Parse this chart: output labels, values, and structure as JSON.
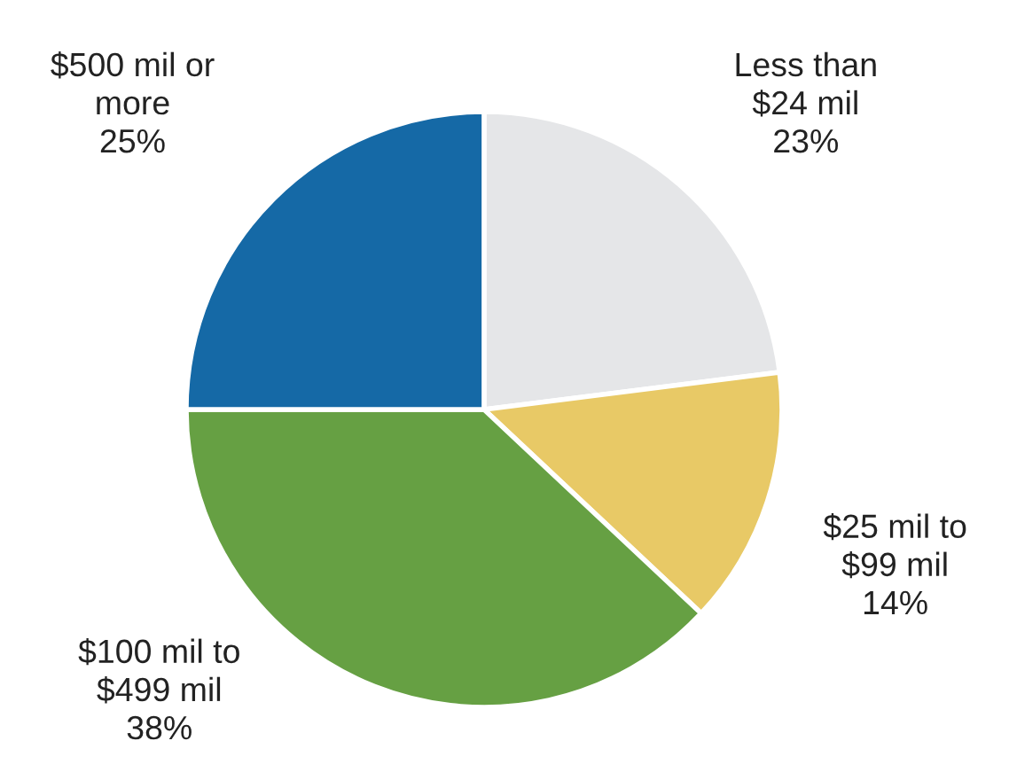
{
  "chart_data": {
    "type": "pie",
    "categories": [
      "Less than\n$24 mil",
      "$25 mil to\n$99 mil",
      "$100 mil to\n$499 mil",
      "$500 mil or\nmore"
    ],
    "values": [
      23,
      14,
      38,
      25
    ],
    "value_labels": [
      "23%",
      "14%",
      "38%",
      "25%"
    ],
    "colors": [
      "#e5e6e8",
      "#e8c966",
      "#66a043",
      "#1569a6"
    ]
  }
}
